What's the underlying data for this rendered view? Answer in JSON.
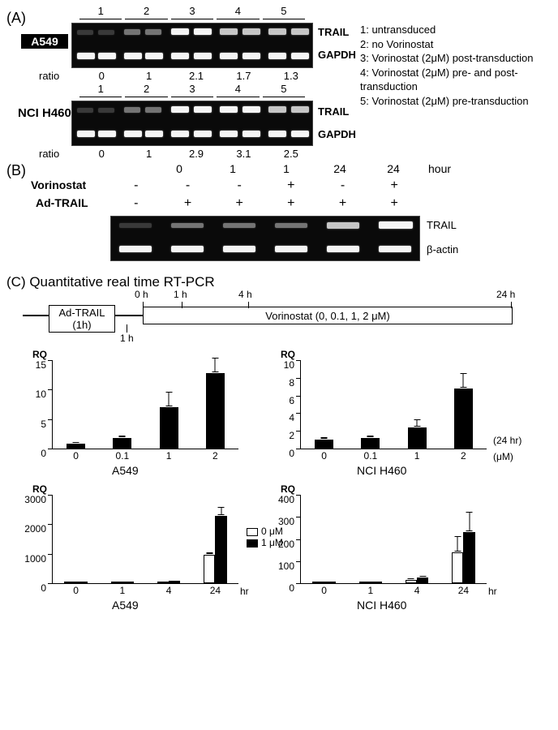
{
  "panelA": {
    "label": "(A)",
    "lanes": [
      "1",
      "2",
      "3",
      "4",
      "5"
    ],
    "cellLines": [
      "A549",
      "NCI H460"
    ],
    "rowLabels": [
      "TRAIL",
      "GAPDH"
    ],
    "ratioLabel": "ratio",
    "ratios": {
      "A549": [
        "0",
        "1",
        "2.1",
        "1.7",
        "1.3"
      ],
      "NCI H460": [
        "0",
        "1",
        "2.9",
        "3.1",
        "2.5"
      ]
    },
    "legend": [
      "1: untransduced",
      "2: no Vorinostat",
      "3: Vorinostat (2μM) post-transduction",
      "4: Vorinostat (2μM) pre- and post-transduction",
      "5: Vorinostat (2μM) pre-transduction"
    ],
    "gel_bg": "#0a0a0a",
    "band_color": "#f5f5f5",
    "trail_intensity": {
      "A549": [
        "faint",
        "dim",
        "bright",
        "med",
        "med"
      ],
      "NCI H460": [
        "faint",
        "dim",
        "bright",
        "bright",
        "med"
      ]
    }
  },
  "panelB": {
    "label": "(B)",
    "hourLabel": "hour",
    "hours": [
      "0",
      "1",
      "1",
      "24",
      "24"
    ],
    "rows": [
      {
        "name": "Vorinostat",
        "vals": [
          "-",
          "-",
          "-",
          "+",
          "-",
          "+"
        ]
      },
      {
        "name": "Ad-TRAIL",
        "vals": [
          "-",
          "+",
          "+",
          "+",
          "+",
          "+"
        ]
      }
    ],
    "bandLabels": [
      "TRAIL",
      "β-actin"
    ],
    "trail_intensity": [
      "faint",
      "dim",
      "dim",
      "dim",
      "med",
      "bright"
    ]
  },
  "panelC": {
    "label": "(C) Quantitative real time RT-PCR",
    "timeline": {
      "adtrail": "Ad-TRAIL\n(1h)",
      "vorinostat": "Vorinostat (0, 0.1, 1, 2 μM)",
      "marks": [
        "0 h",
        "1 h",
        "4 h",
        "24 h"
      ],
      "bottom1h": "1 h"
    },
    "rq_label": "RQ",
    "dose_x": [
      "0",
      "0.1",
      "1",
      "2"
    ],
    "dose_unit": "(μM)",
    "time_x": [
      "0",
      "1",
      "4",
      "24"
    ],
    "time_unit": "hr",
    "extra_24hr": "(24 hr)",
    "charts": {
      "A549_dose": {
        "ymax": 15,
        "ytick_step": 5,
        "values": [
          0.8,
          1.8,
          7.0,
          12.8
        ],
        "err": [
          0.2,
          0.3,
          2.5,
          2.5
        ],
        "bar_color": "#000000",
        "title": "A549"
      },
      "H460_dose": {
        "ymax": 10,
        "ytick_step": 2,
        "values": [
          1.0,
          1.2,
          2.4,
          6.8
        ],
        "err": [
          0.2,
          0.2,
          0.8,
          1.6
        ],
        "bar_color": "#000000",
        "title": "NCI H460"
      },
      "A549_time": {
        "ymax": 3000,
        "ytick_step": 1000,
        "series": [
          {
            "name": "0 μM",
            "color": "#ffffff",
            "values": [
              2,
              10,
              40,
              960
            ],
            "err": [
              0,
              0,
              0,
              60
            ]
          },
          {
            "name": "1 μM",
            "color": "#000000",
            "values": [
              3,
              15,
              80,
              2280
            ],
            "err": [
              0,
              0,
              0,
              280
            ]
          }
        ],
        "title": "A549"
      },
      "H460_time": {
        "ymax": 400,
        "ytick_step": 100,
        "series": [
          {
            "name": "0 μM",
            "color": "#ffffff",
            "values": [
              1,
              5,
              16,
              140
            ],
            "err": [
              0,
              0,
              2,
              70
            ]
          },
          {
            "name": "1 μM",
            "color": "#000000",
            "values": [
              2,
              8,
              26,
              230
            ],
            "err": [
              0,
              0,
              3,
              90
            ]
          }
        ],
        "title": "NCI H460"
      }
    },
    "legend": [
      {
        "label": "0 μM",
        "color": "#ffffff"
      },
      {
        "label": "1 μM",
        "color": "#000000"
      }
    ],
    "axis_fontsize": 12,
    "title_fontsize": 14,
    "bar_width_ratio": 0.3
  },
  "colors": {
    "bg": "#ffffff",
    "fg": "#000000"
  }
}
